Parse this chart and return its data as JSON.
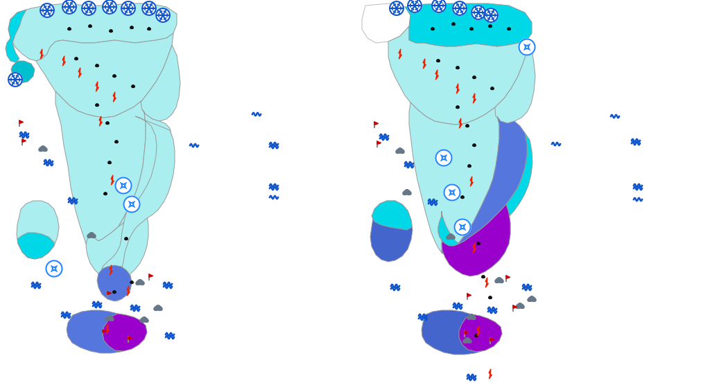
{
  "background_color": "#ffffff",
  "colors": {
    "light_cyan": "#aaeef0",
    "medium_cyan": "#00d8e8",
    "dark_cyan": "#00c0d0",
    "blue": "#5577dd",
    "blue2": "#4466cc",
    "purple": "#9900cc",
    "white": "#ffffff",
    "outline": "#999999",
    "outline_light": "#bbbbbb"
  },
  "symbol_colors": {
    "snowflake": "#1155cc",
    "raindrop": "#111111",
    "lightning": "#ee2200",
    "wind": "#2288ff",
    "flag": "#cc0000",
    "wave": "#1155cc",
    "cloud": "#667788"
  }
}
